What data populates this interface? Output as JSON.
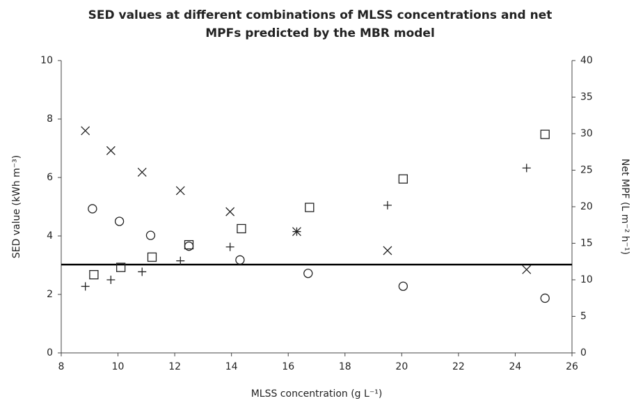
{
  "chart_data": {
    "type": "scatter",
    "title": [
      "SED values at different combinations of MLSS concentrations and net",
      "MPFs predicted by the MBR model"
    ],
    "x_label": "MLSS concentration (g L⁻¹)",
    "y_label": "SED value (kWh m⁻³)",
    "y2_label": "Net MPF (L m⁻² h⁻¹)",
    "xlim": [
      8,
      26
    ],
    "xticks": [
      8,
      10,
      12,
      14,
      16,
      18,
      20,
      22,
      24,
      26
    ],
    "ylim": [
      0,
      10
    ],
    "yticks": [
      0,
      2,
      4,
      6,
      8,
      10
    ],
    "y2lim": [
      0,
      40
    ],
    "y2ticks": [
      0,
      5,
      10,
      15,
      20,
      25,
      30,
      35,
      40
    ],
    "grid": false,
    "hline": 3.02,
    "series": [
      {
        "marker": "circle",
        "color": "#222",
        "x": [
          9.1,
          10.05,
          11.15,
          12.5,
          14.3,
          16.7,
          20.05,
          25.05
        ],
        "values": [
          4.93,
          4.5,
          4.02,
          3.65,
          3.18,
          2.72,
          2.28,
          1.87
        ]
      },
      {
        "marker": "x",
        "color": "#222",
        "x": [
          8.85,
          9.75,
          10.85,
          12.2,
          13.95,
          16.3,
          19.5,
          24.4
        ],
        "values": [
          7.6,
          6.92,
          6.18,
          5.55,
          4.83,
          4.15,
          3.5,
          2.85
        ]
      },
      {
        "marker": "square",
        "color": "#222",
        "axis": "y2",
        "x": [
          9.15,
          10.1,
          11.2,
          12.5,
          14.35,
          16.75,
          20.05,
          25.05
        ],
        "values": [
          10.7,
          11.7,
          13.1,
          14.8,
          17,
          19.9,
          23.8,
          29.9
        ]
      },
      {
        "marker": "plus",
        "color": "#222",
        "axis": "y2",
        "x": [
          8.85,
          9.75,
          10.85,
          12.2,
          13.95,
          16.3,
          19.5,
          24.4
        ],
        "values": [
          9.1,
          10,
          11.1,
          12.6,
          14.5,
          16.6,
          20.2,
          25.3
        ]
      }
    ]
  }
}
